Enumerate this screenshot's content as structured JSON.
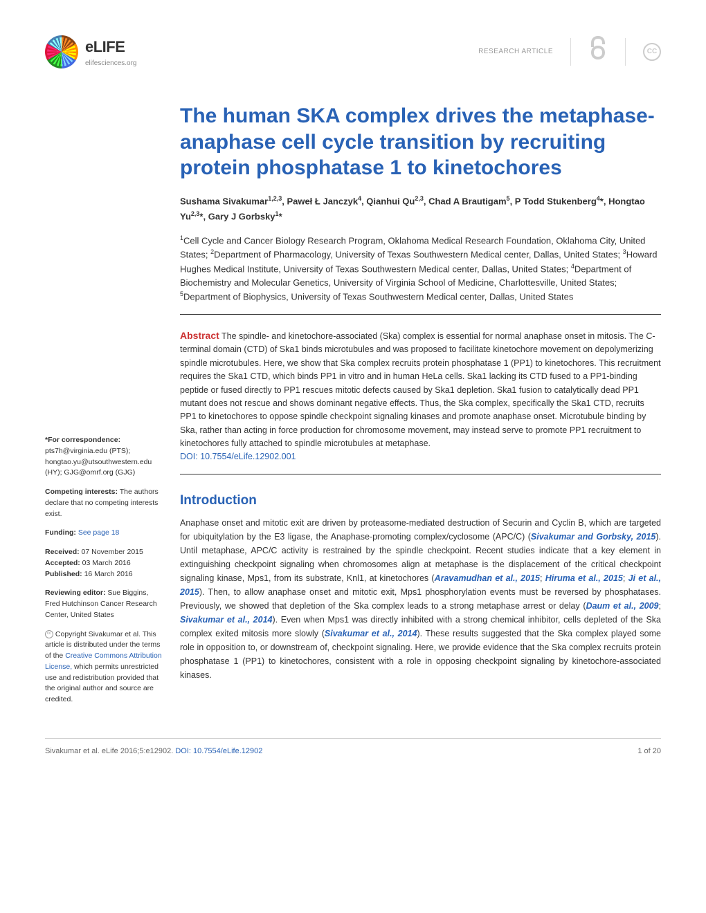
{
  "header": {
    "logo_title": "eLIFE",
    "logo_sub": "elifesciences.org",
    "article_type": "RESEARCH ARTICLE",
    "cc_label": "CC"
  },
  "article": {
    "title": "The human SKA complex drives the metaphase-anaphase cell cycle transition by recruiting protein phosphatase 1 to kinetochores",
    "authors_html": "Sushama Sivakumar<sup>1,2,3</sup>, Paweł Ł Janczyk<sup>4</sup>, Qianhui Qu<sup>2,3</sup>, Chad A Brautigam<sup>5</sup>, P Todd Stukenberg<sup>4</sup>*, Hongtao Yu<sup>2,3</sup>*, Gary J Gorbsky<sup>1</sup>*",
    "affiliations_html": "<sup>1</sup>Cell Cycle and Cancer Biology Research Program, Oklahoma Medical Research Foundation, Oklahoma City, United States; <sup>2</sup>Department of Pharmacology, University of Texas Southwestern Medical center, Dallas, United States; <sup>3</sup>Howard Hughes Medical Institute, University of Texas Southwestern Medical center, Dallas, United States; <sup>4</sup>Department of Biochemistry and Molecular Genetics, University of Virginia School of Medicine, Charlottesville, United States; <sup>5</sup>Department of Biophysics, University of Texas Southwestern Medical center, Dallas, United States",
    "abstract_label": "Abstract",
    "abstract_text": " The spindle- and kinetochore-associated (Ska) complex is essential for normal anaphase onset in mitosis. The C-terminal domain (CTD) of Ska1 binds microtubules and was proposed to facilitate kinetochore movement on depolymerizing spindle microtubules. Here, we show that Ska complex recruits protein phosphatase 1 (PP1) to kinetochores. This recruitment requires the Ska1 CTD, which binds PP1 in vitro and in human HeLa cells. Ska1 lacking its CTD fused to a PP1-binding peptide or fused directly to PP1 rescues mitotic defects caused by Ska1 depletion. Ska1 fusion to catalytically dead PP1 mutant does not rescue and shows dominant negative effects. Thus, the Ska complex, specifically the Ska1 CTD, recruits PP1 to kinetochores to oppose spindle checkpoint signaling kinases and promote anaphase onset. Microtubule binding by Ska, rather than acting in force production for chromosome movement, may instead serve to promote PP1 recruitment to kinetochores fully attached to spindle microtubules at metaphase.",
    "doi": "DOI: 10.7554/eLife.12902.001",
    "intro_title": "Introduction",
    "intro_html": "Anaphase onset and mitotic exit are driven by proteasome-mediated destruction of Securin and Cyclin B, which are targeted for ubiquitylation by the E3 ligase, the Anaphase-promoting complex/cyclosome (APC/C) (<span class='ref-link'>Sivakumar and Gorbsky, 2015</span>). Until metaphase, APC/C activity is restrained by the spindle checkpoint. Recent studies indicate that a key element in extinguishing checkpoint signaling when chromosomes align at metaphase is the displacement of the critical checkpoint signaling kinase, Mps1, from its substrate, Knl1, at kinetochores (<span class='ref-link'>Aravamudhan et al., 2015</span>; <span class='ref-link'>Hiruma et al., 2015</span>; <span class='ref-link'>Ji et al., 2015</span>). Then, to allow anaphase onset and mitotic exit, Mps1 phosphorylation events must be reversed by phosphatases. Previously, we showed that depletion of the Ska complex leads to a strong metaphase arrest or delay (<span class='ref-link'>Daum et al., 2009</span>; <span class='ref-link'>Sivakumar et al., 2014</span>). Even when Mps1 was directly inhibited with a strong chemical inhibitor, cells depleted of the Ska complex exited mitosis more slowly (<span class='ref-link'>Sivakumar et al., 2014</span>). These results suggested that the Ska complex played some role in opposition to, or downstream of, checkpoint signaling. Here, we provide evidence that the Ska complex recruits protein phosphatase 1 (PP1) to kinetochores, consistent with a role in opposing checkpoint signaling by kinetochore-associated kinases."
  },
  "sidebar": {
    "correspondence_label": "*For correspondence:",
    "correspondence_text": " pts7h@virginia.edu (PTS); hongtao.yu@utsouthwestern.edu (HY); GJG@omrf.org (GJG)",
    "competing_label": "Competing interests:",
    "competing_text": " The authors declare that no competing interests exist.",
    "funding_label": "Funding:",
    "funding_link": " See page 18",
    "received_label": "Received:",
    "received_date": " 07 November 2015",
    "accepted_label": "Accepted:",
    "accepted_date": " 03 March 2016",
    "published_label": "Published:",
    "published_date": " 16 March 2016",
    "reviewing_label": "Reviewing editor:",
    "reviewing_text": " Sue Biggins, Fred Hutchinson Cancer Research Center, United States",
    "copyright_text": " Copyright Sivakumar et al. This article is distributed under the terms of the ",
    "license_link": "Creative Commons Attribution License,",
    "copyright_text2": " which permits unrestricted use and redistribution provided that the original author and source are credited."
  },
  "footer": {
    "citation": "Sivakumar et al. eLife 2016;5:e12902. ",
    "doi": "DOI: 10.7554/eLife.12902",
    "page": "1 of 20"
  }
}
